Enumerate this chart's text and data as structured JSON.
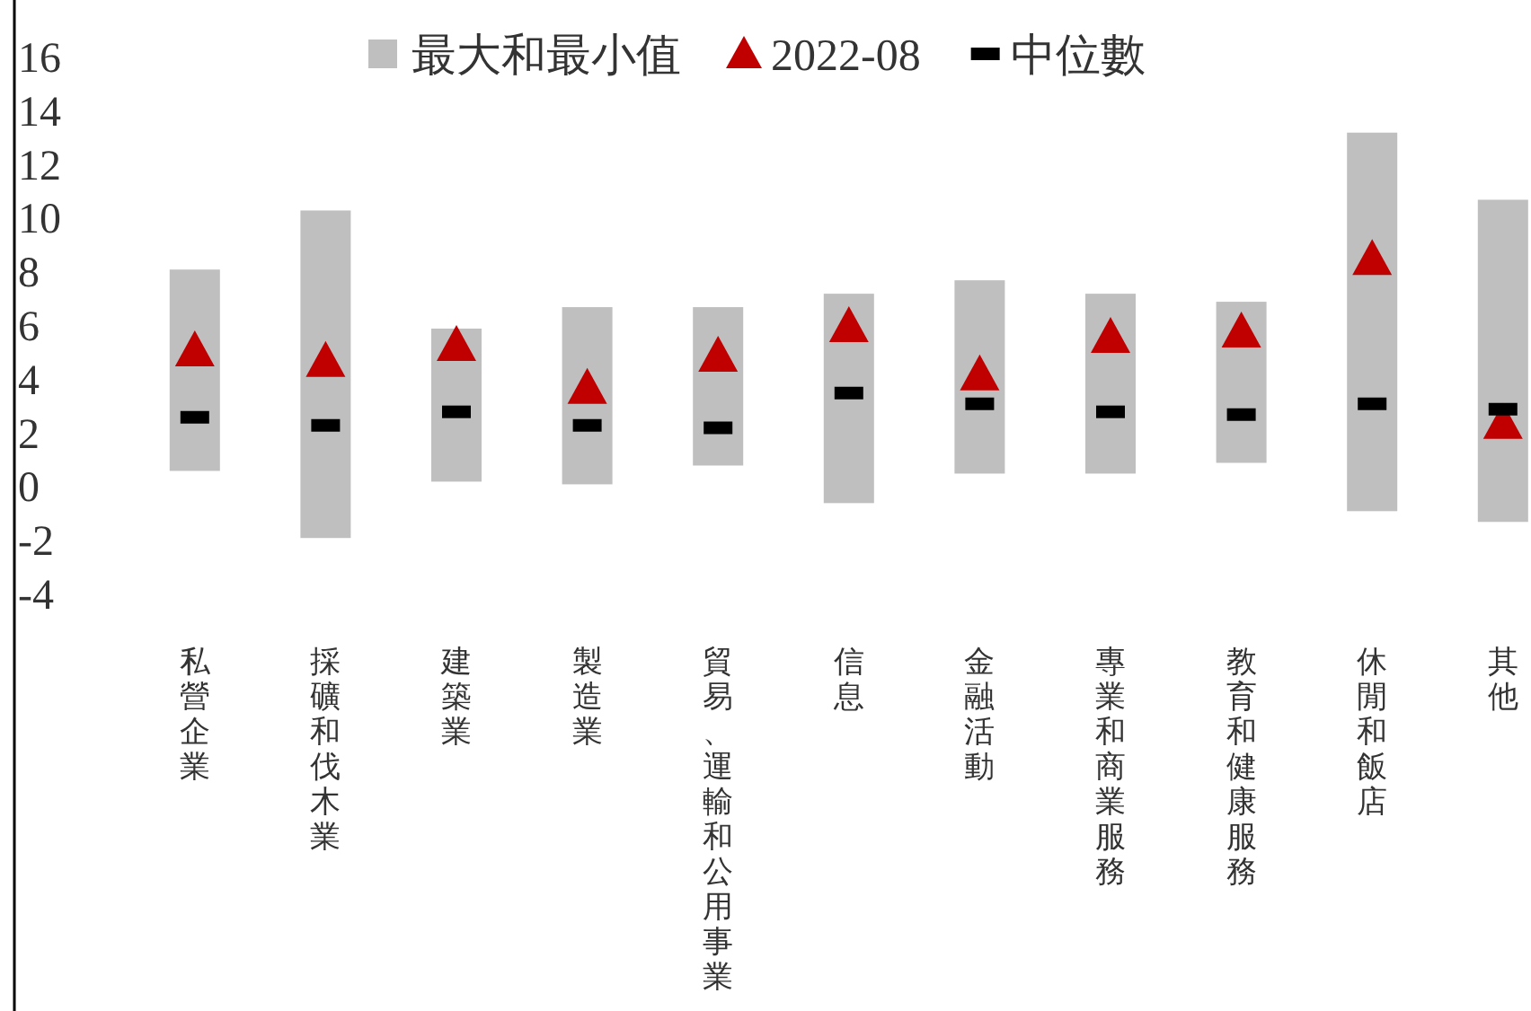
{
  "chart_data": {
    "type": "bar",
    "categories": [
      "私營企業",
      "採礦和伐木業",
      "建築業",
      "製造業",
      "貿易、運輸和公用事業",
      "信息",
      "金融活動",
      "專業和商業服務",
      "教育和健康服務",
      "休閒和飯店",
      "其他"
    ],
    "series": [
      {
        "name": "最大和最小值",
        "type": "bar",
        "color": "#bfbfbf",
        "base": [
          0.6,
          -1.9,
          0.2,
          0.1,
          0.8,
          -0.6,
          0.5,
          0.5,
          0.9,
          -0.9,
          -1.3
        ],
        "values": [
          7.5,
          12.2,
          5.7,
          6.6,
          5.9,
          7.8,
          7.2,
          6.7,
          6.0,
          14.1,
          12.0
        ]
      },
      {
        "name": "2022-08",
        "type": "scatter",
        "marker": "triangle",
        "color": "#c00000",
        "values": [
          5.1,
          4.7,
          5.3,
          3.7,
          4.9,
          6.0,
          4.2,
          5.6,
          5.8,
          8.5,
          2.4
        ]
      },
      {
        "name": "中位數",
        "type": "scatter",
        "color": "#000000",
        "values": [
          2.6,
          2.3,
          2.8,
          2.3,
          2.2,
          3.5,
          3.1,
          2.8,
          2.7,
          3.1,
          2.9
        ]
      }
    ],
    "ylim": [
      -4,
      16
    ],
    "yticks": [
      -4,
      -2,
      0,
      2,
      4,
      6,
      8,
      10,
      12,
      14,
      16
    ],
    "grid": false,
    "legend": "top"
  }
}
